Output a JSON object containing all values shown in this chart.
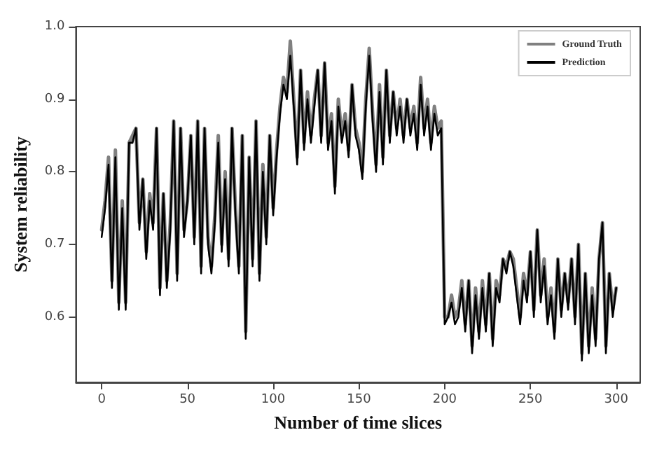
{
  "chart_data": {
    "type": "line",
    "xlabel": "Number of time slices",
    "ylabel": "System reliability",
    "x": [
      0,
      2,
      4,
      6,
      8,
      10,
      12,
      14,
      16,
      18,
      20,
      22,
      24,
      26,
      28,
      30,
      32,
      34,
      36,
      38,
      40,
      42,
      44,
      46,
      48,
      50,
      52,
      54,
      56,
      58,
      60,
      62,
      64,
      66,
      68,
      70,
      72,
      74,
      76,
      78,
      80,
      82,
      84,
      86,
      88,
      90,
      92,
      94,
      96,
      98,
      100,
      102,
      104,
      106,
      108,
      110,
      112,
      114,
      116,
      118,
      120,
      122,
      124,
      126,
      128,
      130,
      132,
      134,
      136,
      138,
      140,
      142,
      144,
      146,
      148,
      150,
      152,
      154,
      156,
      158,
      160,
      162,
      164,
      166,
      168,
      170,
      172,
      174,
      176,
      178,
      180,
      182,
      184,
      186,
      188,
      190,
      192,
      194,
      196,
      198,
      200,
      202,
      204,
      206,
      208,
      210,
      212,
      214,
      216,
      218,
      220,
      222,
      224,
      226,
      228,
      230,
      232,
      234,
      236,
      238,
      240,
      242,
      244,
      246,
      248,
      250,
      252,
      254,
      256,
      258,
      260,
      262,
      264,
      266,
      268,
      270,
      272,
      274,
      276,
      278,
      280,
      282,
      284,
      286,
      288,
      290,
      292,
      294,
      296,
      298,
      300
    ],
    "series": [
      {
        "name": "Ground Truth",
        "color": "#808080",
        "values": [
          0.72,
          0.76,
          0.82,
          0.65,
          0.83,
          0.62,
          0.76,
          0.62,
          0.84,
          0.85,
          0.86,
          0.73,
          0.79,
          0.69,
          0.77,
          0.73,
          0.86,
          0.64,
          0.77,
          0.65,
          0.73,
          0.87,
          0.66,
          0.86,
          0.72,
          0.76,
          0.85,
          0.71,
          0.87,
          0.67,
          0.86,
          0.71,
          0.67,
          0.74,
          0.85,
          0.7,
          0.8,
          0.68,
          0.86,
          0.75,
          0.67,
          0.85,
          0.58,
          0.82,
          0.68,
          0.87,
          0.66,
          0.81,
          0.71,
          0.85,
          0.75,
          0.83,
          0.89,
          0.93,
          0.91,
          0.98,
          0.9,
          0.82,
          0.94,
          0.84,
          0.91,
          0.85,
          0.9,
          0.94,
          0.85,
          0.95,
          0.84,
          0.88,
          0.78,
          0.9,
          0.85,
          0.88,
          0.83,
          0.92,
          0.86,
          0.84,
          0.8,
          0.9,
          0.97,
          0.88,
          0.81,
          0.92,
          0.82,
          0.94,
          0.85,
          0.91,
          0.86,
          0.9,
          0.85,
          0.9,
          0.86,
          0.89,
          0.84,
          0.93,
          0.86,
          0.9,
          0.84,
          0.89,
          0.86,
          0.87,
          0.6,
          0.6,
          0.63,
          0.6,
          0.61,
          0.65,
          0.59,
          0.65,
          0.56,
          0.64,
          0.58,
          0.65,
          0.59,
          0.66,
          0.57,
          0.65,
          0.63,
          0.68,
          0.67,
          0.69,
          0.68,
          0.64,
          0.6,
          0.66,
          0.63,
          0.69,
          0.61,
          0.72,
          0.63,
          0.68,
          0.6,
          0.64,
          0.58,
          0.68,
          0.61,
          0.66,
          0.62,
          0.68,
          0.6,
          0.7,
          0.55,
          0.66,
          0.56,
          0.64,
          0.57,
          0.68,
          0.73,
          0.56,
          0.66,
          0.61,
          0.64
        ]
      },
      {
        "name": "Prediction",
        "color": "#000000",
        "values": [
          0.71,
          0.75,
          0.81,
          0.64,
          0.82,
          0.61,
          0.75,
          0.61,
          0.84,
          0.84,
          0.86,
          0.72,
          0.79,
          0.68,
          0.76,
          0.72,
          0.86,
          0.63,
          0.77,
          0.64,
          0.72,
          0.87,
          0.65,
          0.86,
          0.71,
          0.76,
          0.85,
          0.7,
          0.87,
          0.66,
          0.86,
          0.7,
          0.66,
          0.73,
          0.84,
          0.69,
          0.79,
          0.67,
          0.86,
          0.74,
          0.66,
          0.85,
          0.57,
          0.82,
          0.67,
          0.87,
          0.65,
          0.8,
          0.7,
          0.85,
          0.74,
          0.82,
          0.88,
          0.92,
          0.9,
          0.96,
          0.89,
          0.81,
          0.94,
          0.83,
          0.9,
          0.84,
          0.89,
          0.94,
          0.84,
          0.95,
          0.83,
          0.87,
          0.77,
          0.89,
          0.84,
          0.87,
          0.82,
          0.92,
          0.85,
          0.83,
          0.79,
          0.89,
          0.96,
          0.87,
          0.8,
          0.91,
          0.81,
          0.94,
          0.84,
          0.91,
          0.85,
          0.89,
          0.84,
          0.9,
          0.85,
          0.88,
          0.83,
          0.92,
          0.85,
          0.89,
          0.83,
          0.88,
          0.85,
          0.86,
          0.59,
          0.6,
          0.62,
          0.59,
          0.6,
          0.64,
          0.58,
          0.65,
          0.55,
          0.63,
          0.57,
          0.64,
          0.58,
          0.66,
          0.56,
          0.64,
          0.62,
          0.68,
          0.66,
          0.69,
          0.67,
          0.63,
          0.59,
          0.65,
          0.62,
          0.69,
          0.6,
          0.72,
          0.62,
          0.67,
          0.59,
          0.63,
          0.57,
          0.68,
          0.6,
          0.66,
          0.61,
          0.68,
          0.59,
          0.7,
          0.54,
          0.66,
          0.55,
          0.63,
          0.56,
          0.68,
          0.73,
          0.55,
          0.66,
          0.6,
          0.64
        ]
      }
    ],
    "xlim": [
      -15,
      314
    ],
    "xticks": [
      0,
      50,
      100,
      150,
      200,
      250,
      300
    ],
    "ylim": [
      0.51,
      1.0
    ],
    "yticks": [
      0.6,
      0.7,
      0.8,
      0.9,
      {
        "value": 1.0,
        "label": "1.0"
      }
    ],
    "legend": "top right",
    "marker": "none",
    "line_style": "solid"
  }
}
